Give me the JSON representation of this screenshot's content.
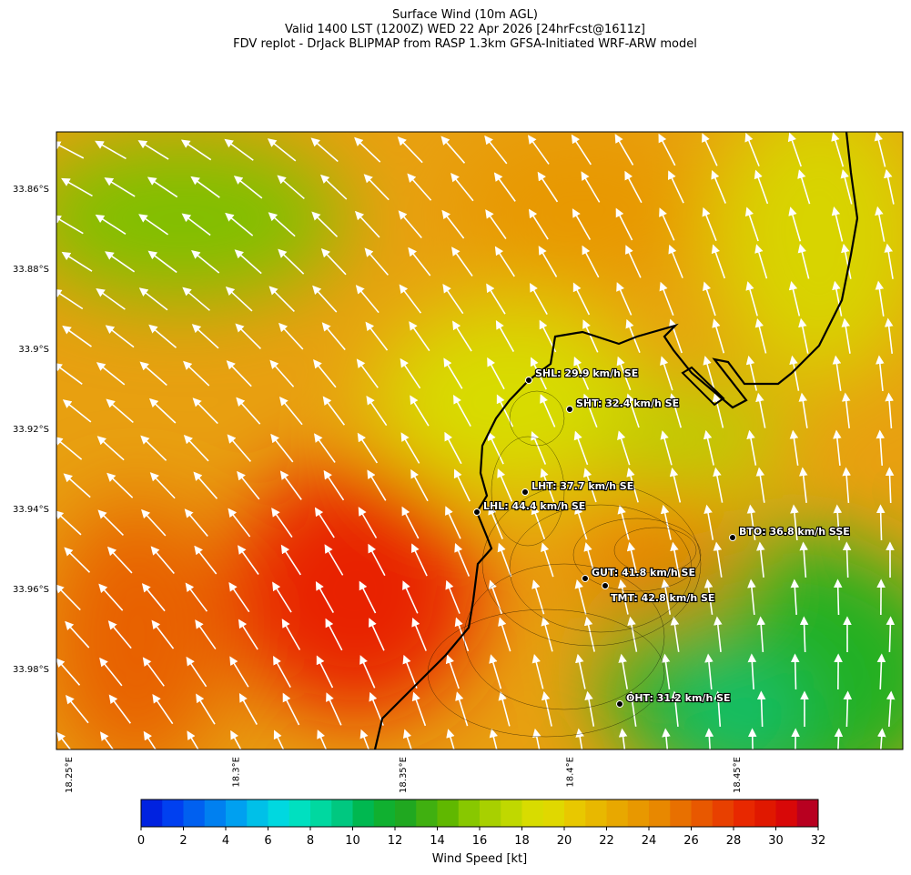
{
  "title": [
    "Surface Wind (10m AGL)",
    "Valid 1400 LST (1200Z) WED 22 Apr 2026 [24hrFcst@1611z]",
    "FDV replot - DrJack BLIPMAP from RASP 1.3km GFSA-Initiated WRF-ARW model"
  ],
  "map": {
    "lat_ticks": [
      "33.86°S",
      "33.88°S",
      "33.9°S",
      "33.92°S",
      "33.94°S",
      "33.96°S",
      "33.98°S"
    ],
    "lon_ticks": [
      "18.25°E",
      "18.3°E",
      "18.35°E",
      "18.4°E",
      "18.45°E"
    ],
    "stations": [
      "SHL: 29.9 km/h SE",
      "SHT: 32.4 km/h SE",
      "LHT: 37.7 km/h SE",
      "LHL: 44.4 km/h SE",
      "BTO: 36.8 km/h SSE",
      "GUT: 41.8 km/h SE",
      "TMT: 42.8 km/h SE",
      "OHT: 31.2 km/h SE"
    ]
  },
  "colorbar": {
    "label": "Wind Speed [kt]",
    "range": [
      0,
      32
    ],
    "ticks": [
      0,
      2,
      4,
      6,
      8,
      10,
      12,
      14,
      16,
      18,
      20,
      22,
      24,
      26,
      28,
      30,
      32
    ],
    "colors": [
      "#0022e0",
      "#0040f0",
      "#0060f0",
      "#0080f0",
      "#00a0f0",
      "#00c0e8",
      "#00d8e0",
      "#00e0c0",
      "#00d8a0",
      "#00c880",
      "#00b850",
      "#10b030",
      "#20a820",
      "#40b010",
      "#60b800",
      "#88c800",
      "#a8d000",
      "#c0d800",
      "#d8dc00",
      "#e0d800",
      "#e8c800",
      "#e8b800",
      "#e8a800",
      "#e89800",
      "#e88800",
      "#e87000",
      "#e85800",
      "#e84000",
      "#e82800",
      "#e01800",
      "#d80808",
      "#b80020"
    ]
  }
}
